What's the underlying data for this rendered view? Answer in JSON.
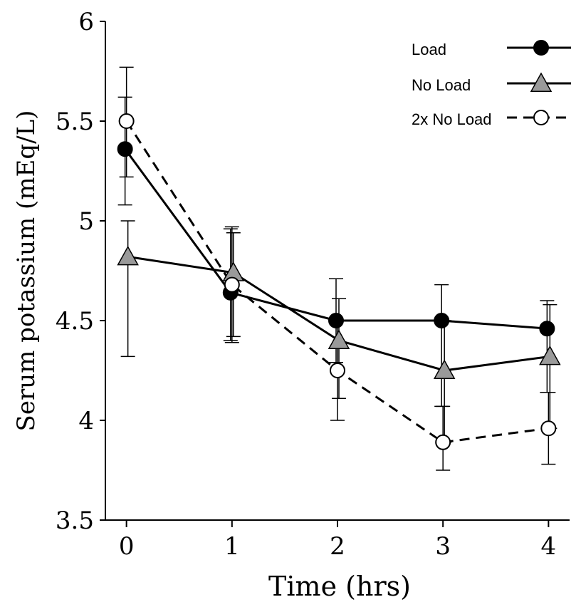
{
  "chart_data": {
    "type": "line",
    "xlabel": "Time (hrs)",
    "ylabel": "Serum potassium (mEq/L)",
    "ylim": [
      3.5,
      6
    ],
    "xlim": [
      -0.2,
      4.2
    ],
    "x_ticks": [
      "0",
      "1",
      "2",
      "3",
      "4"
    ],
    "y_ticks": [
      "3.5",
      "4",
      "4.5",
      "5",
      "5.5",
      "6"
    ],
    "grid": false,
    "legend_position": "top-right",
    "series": [
      {
        "name": "Load",
        "marker": "filled-circle",
        "line_style": "solid",
        "points": [
          {
            "x": 0,
            "y": 5.36,
            "err_low": 5.08,
            "err_high": 5.62
          },
          {
            "x": 1,
            "y": 4.64,
            "err_low": 4.4,
            "err_high": 4.96
          },
          {
            "x": 2,
            "y": 4.5,
            "err_low": 4.29,
            "err_high": 4.71
          },
          {
            "x": 3,
            "y": 4.5,
            "err_low": 4.07,
            "err_high": 4.68
          },
          {
            "x": 4,
            "y": 4.46,
            "err_low": 4.14,
            "err_high": 4.6
          }
        ]
      },
      {
        "name": "No Load",
        "marker": "gray-triangle",
        "line_style": "solid",
        "points": [
          {
            "x": 0,
            "y": 4.82,
            "err_low": 4.32,
            "err_high": 5.0
          },
          {
            "x": 1,
            "y": 4.74,
            "err_low": 4.42,
            "err_high": 4.94
          },
          {
            "x": 2,
            "y": 4.4,
            "err_low": 4.11,
            "err_high": 4.61
          },
          {
            "x": 3,
            "y": 4.25,
            "err_low": 3.89,
            "err_high": 4.5
          },
          {
            "x": 4,
            "y": 4.32,
            "err_low": 3.96,
            "err_high": 4.58
          }
        ]
      },
      {
        "name": "2x No Load",
        "marker": "open-circle",
        "line_style": "dashed",
        "points": [
          {
            "x": 0,
            "y": 5.5,
            "err_low": 5.22,
            "err_high": 5.77
          },
          {
            "x": 1,
            "y": 4.68,
            "err_low": 4.39,
            "err_high": 4.97
          },
          {
            "x": 2,
            "y": 4.25,
            "err_low": 4.0,
            "err_high": 4.5
          },
          {
            "x": 3,
            "y": 3.89,
            "err_low": 3.75,
            "err_high": 4.07
          },
          {
            "x": 4,
            "y": 3.96,
            "err_low": 3.78,
            "err_high": 4.14
          }
        ]
      }
    ]
  }
}
